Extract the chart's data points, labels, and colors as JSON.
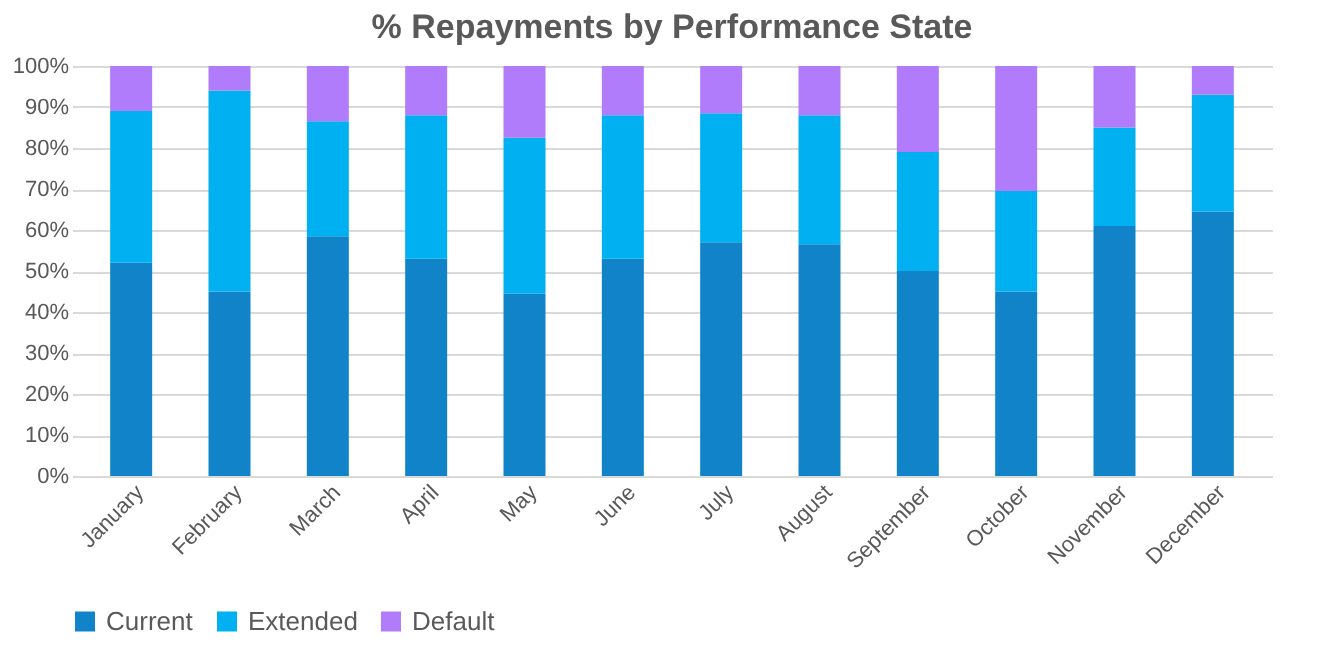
{
  "chart_data": {
    "type": "bar",
    "stacked": true,
    "title": "% Repayments by Performance State",
    "categories": [
      "January",
      "February",
      "March",
      "April",
      "May",
      "June",
      "July",
      "August",
      "September",
      "October",
      "November",
      "December"
    ],
    "series": [
      {
        "name": "Current",
        "color": "#1184c9",
        "values": [
          52,
          45,
          58.5,
          53,
          44.5,
          53,
          57,
          56.5,
          50,
          45,
          61,
          64.5
        ]
      },
      {
        "name": "Extended",
        "color": "#00b0f0",
        "values": [
          37,
          49,
          28,
          35,
          38,
          35,
          31.5,
          31.5,
          29,
          24.5,
          24,
          28.5
        ]
      },
      {
        "name": "Default",
        "color": "#b07cfc",
        "values": [
          11,
          6,
          13.5,
          12,
          17.5,
          12,
          11.5,
          12,
          21,
          30.5,
          15,
          7
        ]
      }
    ],
    "ylim": [
      0,
      100
    ],
    "yticks": [
      {
        "value": 0,
        "label": "0%"
      },
      {
        "value": 10,
        "label": "10%"
      },
      {
        "value": 20,
        "label": "20%"
      },
      {
        "value": 30,
        "label": "30%"
      },
      {
        "value": 40,
        "label": "40%"
      },
      {
        "value": 50,
        "label": "50%"
      },
      {
        "value": 60,
        "label": "60%"
      },
      {
        "value": 70,
        "label": "70%"
      },
      {
        "value": 80,
        "label": "80%"
      },
      {
        "value": 90,
        "label": "90%"
      },
      {
        "value": 100,
        "label": "100%"
      }
    ],
    "grid": "y",
    "legend": "bottom"
  }
}
